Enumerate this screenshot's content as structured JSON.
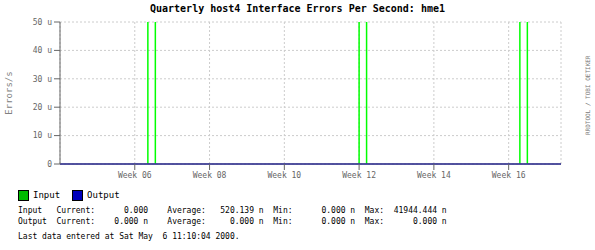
{
  "chart_data": {
    "type": "line",
    "title": "Quarterly host4 Interface Errors Per Second: hme1",
    "ylabel": "Errors/s",
    "xlim": [
      4.0,
      17.4
    ],
    "xticks": [
      {
        "value": 6,
        "label": "Week 06"
      },
      {
        "value": 8,
        "label": "Week 08"
      },
      {
        "value": 10,
        "label": "Week 10"
      },
      {
        "value": 12,
        "label": "Week 12"
      },
      {
        "value": 14,
        "label": "Week 14"
      },
      {
        "value": 16,
        "label": "Week 16"
      }
    ],
    "ylim": [
      0,
      50
    ],
    "yticks": [
      0,
      {
        "value": 10,
        "label": "10 u"
      },
      {
        "value": 20,
        "label": "20 u"
      },
      {
        "value": 30,
        "label": "30 u"
      },
      {
        "value": 40,
        "label": "40 u"
      },
      {
        "value": 50,
        "label": "50 u"
      }
    ],
    "grid": true,
    "vlines": {
      "x": [
        6.35,
        6.55,
        12.0,
        12.2,
        16.3,
        16.5
      ],
      "color": "#00ff00"
    },
    "hlines": [
      {
        "y": 0,
        "color": "#0000cc"
      }
    ],
    "legend_entries": [
      {
        "name": "Input",
        "color": "#00bb00"
      },
      {
        "name": "Output",
        "color": "#0000bb"
      }
    ],
    "footer": [
      "Input   Current:      0.000    Average:   520.139 n  Min:      0.000 n  Max:  41944.444 n",
      "Output  Current:    0.000 n    Average:     0.000 n  Min:      0.000 n  Max:      0.000 n",
      "Last data entered at Sat May  6 11:10:04 2000."
    ],
    "watermark": "RRDTOOL / TOBI OETIKER"
  }
}
